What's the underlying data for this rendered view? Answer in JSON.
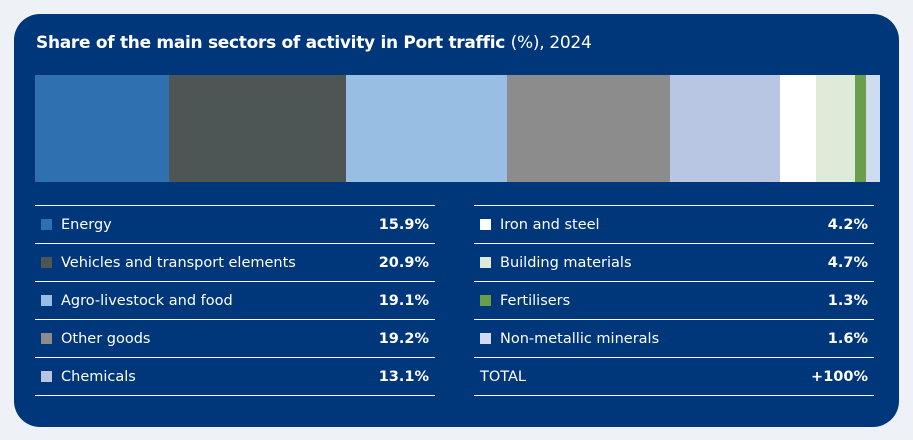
{
  "chart_data": {
    "type": "bar",
    "orientation": "stacked-horizontal-100%",
    "title": "Share of the main sectors of activity in Port traffic",
    "title_unit": "(%), 2024",
    "categories": [
      "Energy",
      "Vehicles and transport elements",
      "Agro-livestock and food",
      "Other goods",
      "Chemicals",
      "Iron and steel",
      "Building materials",
      "Fertilisers",
      "Non-metallic minerals"
    ],
    "values": [
      15.9,
      20.9,
      19.1,
      19.2,
      13.1,
      4.2,
      4.7,
      1.3,
      1.6
    ],
    "value_labels": [
      "15.9%",
      "20.9%",
      "19.1%",
      "19.2%",
      "13.1%",
      "4.2%",
      "4.7%",
      "1.3%",
      "1.6%"
    ],
    "colors": [
      "#2e70b0",
      "#4d5555",
      "#98bfe3",
      "#8c8c8c",
      "#b8c6e3",
      "#ffffff",
      "#dfebd9",
      "#6b9e4a",
      "#cfdcef"
    ],
    "total_label": "TOTAL",
    "total_value": "+100%",
    "legend_position": "bottom"
  },
  "colors": {
    "panel": "#00377a",
    "text": "#ffffff"
  }
}
